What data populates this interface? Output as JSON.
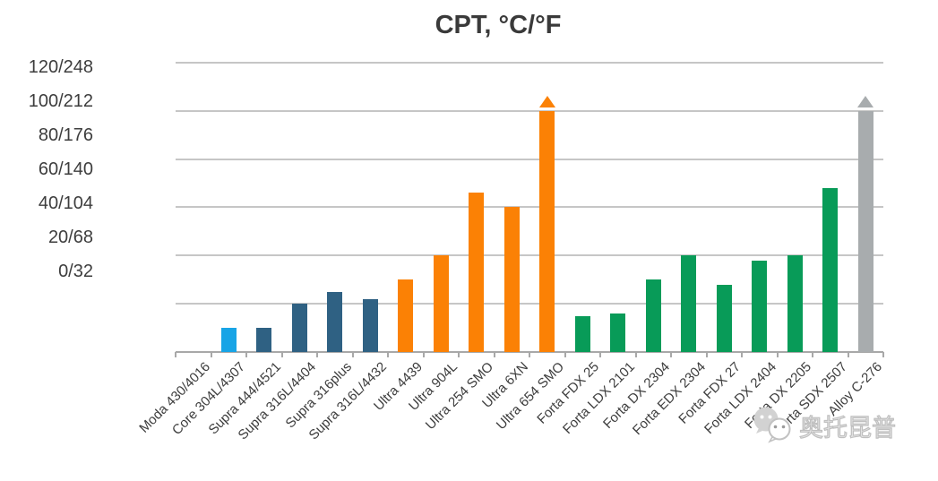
{
  "chart_data": {
    "type": "bar",
    "title": "CPT, °C/°F",
    "xlabel": "",
    "ylabel": "",
    "ylim": [
      0,
      120
    ],
    "y_tick_step": 20,
    "y_tick_labels_top_to_bottom": [
      "120/248",
      "100/212",
      "80/176",
      "60/140",
      "40/104",
      "20/68",
      "0/32"
    ],
    "grid": true,
    "legend": false,
    "categories": [
      "Moda 430/4016",
      "Core 304L/4307",
      "Supra 444/4521",
      "Supra 316L/4404",
      "Supra 316plus",
      "Supra 316L/4432",
      "Ultra 4439",
      "Ultra 904L",
      "Ultra 254 SMO",
      "Ultra 6XN",
      "Ultra 654 SMO",
      "Forta FDX 25",
      "Forta LDX 2101",
      "Forta DX 2304",
      "Forta EDX 2304",
      "Forta FDX 27",
      "Forta LDX 2404",
      "Forta DX 2205",
      "Forta SDX 2507",
      "Alloy C-276"
    ],
    "values": [
      0,
      10,
      10,
      20,
      25,
      22,
      30,
      40,
      66,
      60,
      100,
      15,
      16,
      30,
      40,
      28,
      38,
      40,
      68,
      100
    ],
    "bar_groups": [
      "moda",
      "core",
      "supra",
      "supra",
      "supra",
      "supra",
      "ultra",
      "ultra",
      "ultra",
      "ultra",
      "ultra",
      "forta",
      "forta",
      "forta",
      "forta",
      "forta",
      "forta",
      "forta",
      "forta",
      "alloy"
    ],
    "group_colors": {
      "moda": "#7fc9ec",
      "core": "#18a4e6",
      "supra": "#2f6183",
      "ultra": "#fb8105",
      "forta": "#089b58",
      "alloy": "#a8acae"
    },
    "exceeds_axis_indices": [
      10,
      19
    ],
    "exceeds_axis_meaning": "arrow above bar: value greater than 100 °C / 212 °F"
  },
  "watermark": {
    "text": "奥托昆普",
    "icon": "wechat-account-logo",
    "color": "#cccccc"
  }
}
